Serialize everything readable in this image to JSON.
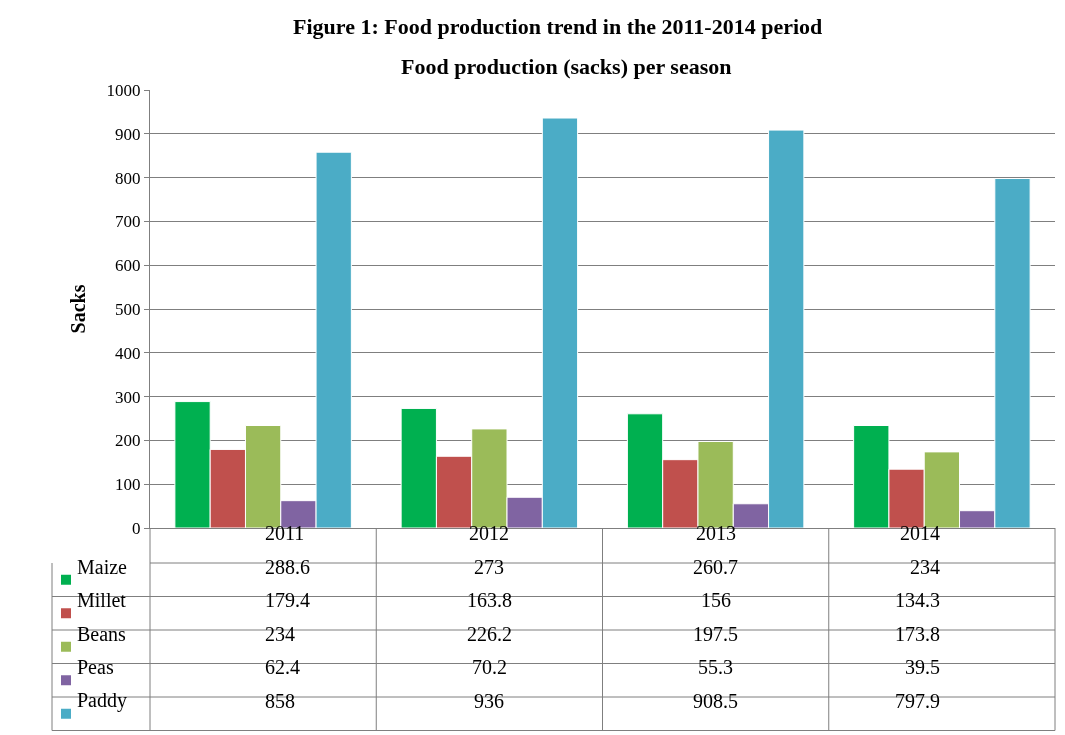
{
  "chart_data": {
    "type": "bar",
    "title": "Figure 1: Food production trend in the 2011-2014 period",
    "subtitle": "Food production (sacks) per season",
    "ylabel": "Sacks",
    "categories": [
      "2011",
      "2012",
      "2013",
      "2014"
    ],
    "series": [
      {
        "name": "Maize",
        "color": "#00b050",
        "values": [
          288.6,
          273,
          260.7,
          234
        ]
      },
      {
        "name": "Millet",
        "color": "#c0504d",
        "values": [
          179.4,
          163.8,
          156,
          134.3
        ]
      },
      {
        "name": "Beans",
        "color": "#9bbb59",
        "values": [
          234,
          226.2,
          197.5,
          173.8
        ]
      },
      {
        "name": "Peas",
        "color": "#8064a2",
        "values": [
          62.4,
          70.2,
          55.3,
          39.5
        ]
      },
      {
        "name": "Paddy",
        "color": "#4bacc6",
        "values": [
          858,
          936,
          908.5,
          797.9
        ]
      }
    ],
    "ylim": [
      0,
      1000
    ],
    "yticks": [
      0,
      100,
      200,
      300,
      400,
      500,
      600,
      700,
      800,
      900,
      1000
    ],
    "grid": "y",
    "legend": "bottom",
    "data_labels": true
  }
}
